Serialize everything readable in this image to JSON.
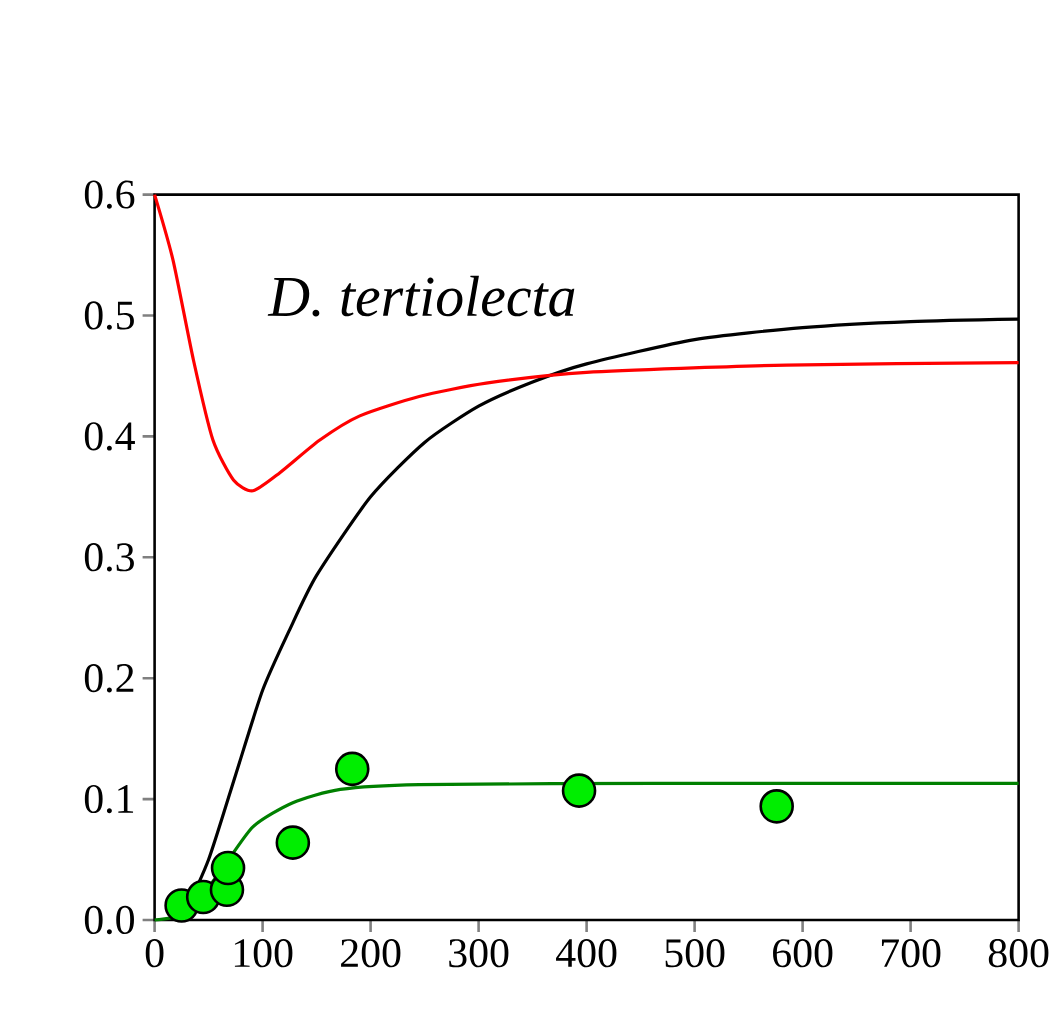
{
  "chart_data": {
    "type": "line",
    "title": "D. tertiolecta",
    "xlim": [
      0,
      800
    ],
    "xticks": [
      0,
      100,
      200,
      300,
      400,
      500,
      600,
      700,
      800
    ],
    "ylim": [
      0,
      0.6
    ],
    "yticks": [
      {
        "value": 0,
        "label": "0.0"
      },
      0.1,
      0.2,
      0.3,
      0.4,
      0.5,
      0.6
    ],
    "series": [
      {
        "color": "#000000",
        "marker": "none",
        "x": [
          25,
          50,
          75,
          100,
          125,
          150,
          200,
          250,
          300,
          350,
          400,
          500,
          600,
          700,
          800
        ],
        "values": [
          0,
          0.05,
          0.12,
          0.19,
          0.24,
          0.285,
          0.35,
          0.395,
          0.425,
          0.445,
          0.46,
          0.48,
          0.49,
          0.495,
          0.497
        ]
      },
      {
        "color": "#ff0000",
        "marker": "none",
        "x": [
          0,
          17,
          36,
          54,
          73,
          91,
          116,
          153,
          190,
          245,
          307,
          400,
          585,
          800
        ],
        "values": [
          0.6,
          0.546,
          0.463,
          0.397,
          0.364,
          0.355,
          0.37,
          0.397,
          0.417,
          0.433,
          0.444,
          0.453,
          0.459,
          0.461
        ]
      },
      {
        "color": "#008000",
        "marker": "none",
        "x": [
          0,
          30,
          60,
          91,
          128,
          172,
          245,
          462,
          800
        ],
        "values": [
          0,
          0.006,
          0.039,
          0.077,
          0.097,
          0.108,
          0.112,
          0.113,
          0.113
        ]
      },
      {
        "type": "scatter",
        "color": "#00ee00",
        "marker": "circle",
        "x": [
          25,
          45,
          67,
          68,
          128,
          183,
          393,
          576
        ],
        "values": [
          0.012,
          0.019,
          0.025,
          0.043,
          0.064,
          0.125,
          0.107,
          0.094
        ]
      }
    ]
  }
}
